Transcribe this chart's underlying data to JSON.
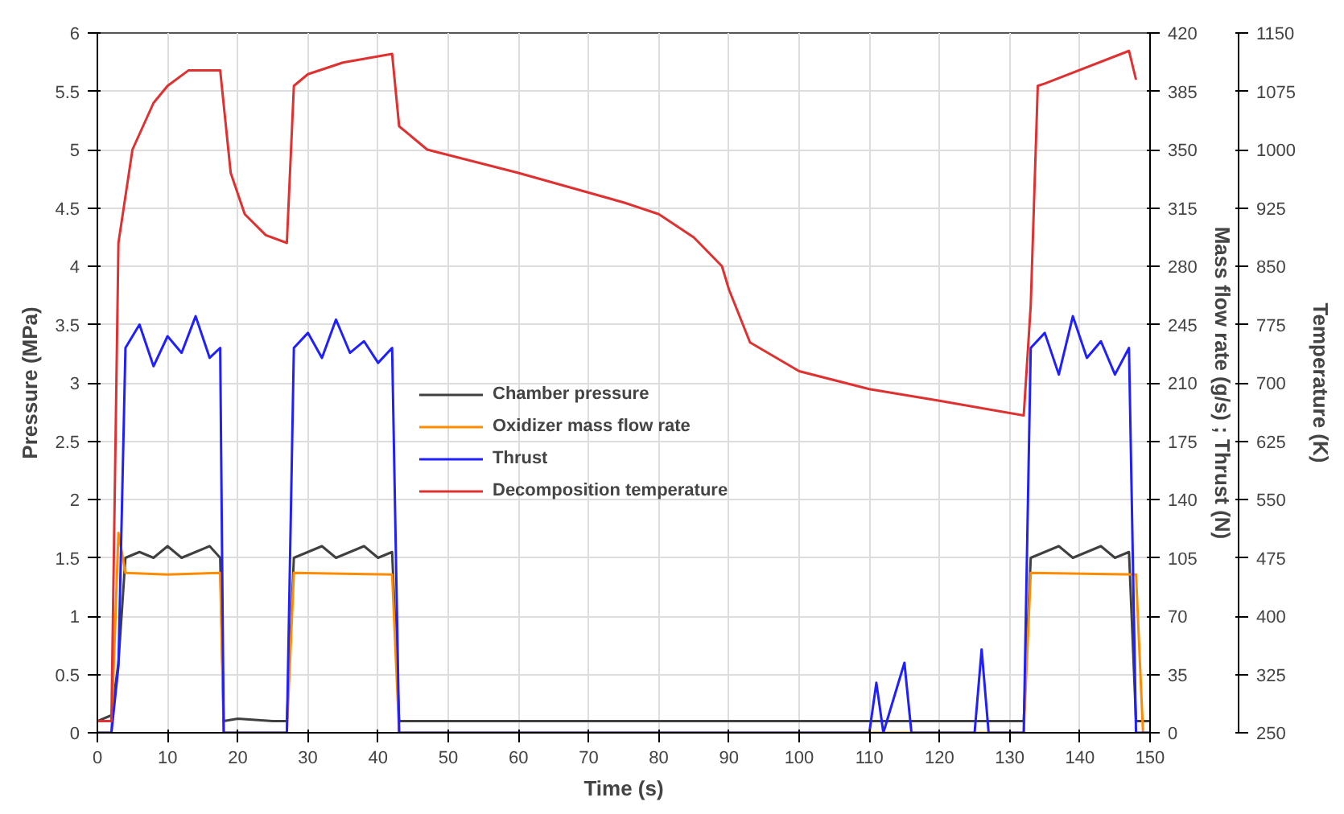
{
  "chart_data": {
    "type": "line",
    "xlabel": "Time (s)",
    "ylabel": "Pressure (MPa)",
    "y2label": "Mass flow rate (g/s) ; Thrust (N)",
    "y3label": "Temperature (K)",
    "xlim": [
      0,
      150
    ],
    "xticks": [
      0,
      10,
      20,
      30,
      40,
      50,
      60,
      70,
      80,
      90,
      100,
      110,
      120,
      130,
      140,
      150
    ],
    "ylim": [
      0,
      6
    ],
    "yticks": [
      0,
      0.5,
      1,
      1.5,
      2,
      2.5,
      3,
      3.5,
      4,
      4.5,
      5,
      5.5,
      6
    ],
    "y2lim": [
      0,
      420
    ],
    "y2ticks": [
      0,
      35,
      70,
      105,
      140,
      175,
      210,
      245,
      280,
      315,
      350,
      385,
      420
    ],
    "y3lim": [
      250,
      1150
    ],
    "y3ticks": [
      250,
      325,
      400,
      475,
      550,
      625,
      700,
      775,
      850,
      925,
      1000,
      1075,
      1150
    ],
    "grid": true,
    "legend": "center",
    "marker": "none",
    "line_style": "solid",
    "series": [
      {
        "name": "Chamber pressure",
        "color": "#404040",
        "x": [
          0,
          2,
          3,
          4,
          6,
          8,
          10,
          12,
          14,
          16,
          17.5,
          18,
          20,
          25,
          27,
          28,
          30,
          32,
          34,
          36,
          38,
          40,
          42,
          43,
          50,
          70,
          90,
          110,
          130,
          132,
          133,
          135,
          137,
          139,
          141,
          143,
          145,
          147,
          148,
          150
        ],
        "values": [
          0.1,
          0.15,
          0.6,
          1.5,
          1.55,
          1.5,
          1.6,
          1.5,
          1.55,
          1.6,
          1.5,
          0.1,
          0.12,
          0.1,
          0.1,
          1.5,
          1.55,
          1.6,
          1.5,
          1.55,
          1.6,
          1.5,
          1.55,
          0.1,
          0.1,
          0.1,
          0.1,
          0.1,
          0.1,
          0.1,
          1.5,
          1.55,
          1.6,
          1.5,
          1.55,
          1.6,
          1.5,
          1.55,
          0.1,
          0.1
        ]
      },
      {
        "name": "Oxidizer mass flow rate",
        "color": "#ff8c00",
        "axis": "y2",
        "x": [
          0,
          2,
          3,
          4,
          10,
          17.5,
          18,
          27,
          28,
          42,
          43,
          132,
          133,
          148,
          149,
          150
        ],
        "values": [
          0,
          0,
          120,
          96,
          95,
          96,
          0,
          0,
          96,
          95,
          0,
          0,
          96,
          95,
          0,
          0
        ]
      },
      {
        "name": "Thrust",
        "color": "#2020ff",
        "axis": "y2",
        "x": [
          0,
          2,
          3,
          4,
          6,
          8,
          10,
          12,
          14,
          16,
          17.5,
          18,
          27,
          28,
          30,
          32,
          34,
          36,
          38,
          40,
          42,
          43,
          110,
          111,
          112,
          115,
          116,
          125,
          126,
          127,
          132,
          133,
          135,
          137,
          139,
          141,
          143,
          145,
          147,
          148,
          150
        ],
        "values": [
          0,
          0,
          40,
          231,
          245,
          220,
          238,
          228,
          250,
          225,
          231,
          0,
          0,
          231,
          240,
          225,
          248,
          228,
          235,
          222,
          231,
          0,
          0,
          30,
          0,
          42,
          0,
          0,
          50,
          0,
          0,
          231,
          240,
          215,
          250,
          225,
          235,
          215,
          231,
          0,
          0
        ]
      },
      {
        "name": "Decomposition temperature",
        "color": "#e03030",
        "axis": "y3",
        "x": [
          0,
          2,
          3,
          5,
          8,
          10,
          13,
          17.5,
          19,
          21,
          24,
          27,
          28,
          30,
          35,
          42,
          43,
          47,
          60,
          75,
          80,
          85,
          89,
          90,
          93,
          100,
          110,
          120,
          132,
          133,
          134,
          135,
          147,
          148
        ],
        "values": [
          265,
          265,
          880,
          1000,
          1060,
          1082,
          1102,
          1102,
          970,
          917,
          890,
          880,
          1082,
          1097,
          1112,
          1123,
          1030,
          1000,
          970,
          932,
          917,
          887,
          850,
          820,
          752,
          715,
          692,
          677,
          658,
          800,
          1082,
          1085,
          1127,
          1090
        ]
      }
    ]
  }
}
